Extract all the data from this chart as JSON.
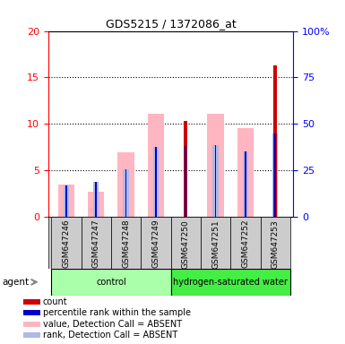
{
  "title": "GDS5215 / 1372086_at",
  "samples": [
    "GSM647246",
    "GSM647247",
    "GSM647248",
    "GSM647249",
    "GSM647250",
    "GSM647251",
    "GSM647252",
    "GSM647253"
  ],
  "groups": [
    {
      "label": "control",
      "indices": [
        0,
        1,
        2,
        3
      ],
      "color": "#aaffaa"
    },
    {
      "label": "hydrogen-saturated water",
      "indices": [
        4,
        5,
        6,
        7
      ],
      "color": "#44ee44"
    }
  ],
  "value_absent": [
    3.5,
    2.7,
    6.9,
    11.1,
    null,
    11.1,
    9.5,
    null
  ],
  "rank_absent": [
    3.4,
    3.8,
    5.1,
    7.5,
    null,
    7.7,
    7.0,
    9.0
  ],
  "count": [
    null,
    null,
    null,
    null,
    10.3,
    null,
    null,
    16.3
  ],
  "percentile_rank": [
    3.4,
    3.8,
    5.1,
    7.5,
    7.6,
    7.7,
    7.0,
    9.0
  ],
  "ylim_left": [
    0,
    20
  ],
  "ylim_right": [
    0,
    100
  ],
  "yticks_left": [
    0,
    5,
    10,
    15,
    20
  ],
  "yticks_right": [
    0,
    25,
    50,
    75,
    100
  ],
  "color_count": "#cc0000",
  "color_percentile": "#0000cc",
  "color_value_absent": "#ffb6c1",
  "color_rank_absent": "#b0b8e8",
  "legend_items": [
    {
      "label": "count",
      "color": "#cc0000"
    },
    {
      "label": "percentile rank within the sample",
      "color": "#0000cc"
    },
    {
      "label": "value, Detection Call = ABSENT",
      "color": "#ffb6c1"
    },
    {
      "label": "rank, Detection Call = ABSENT",
      "color": "#b0b8e8"
    }
  ]
}
